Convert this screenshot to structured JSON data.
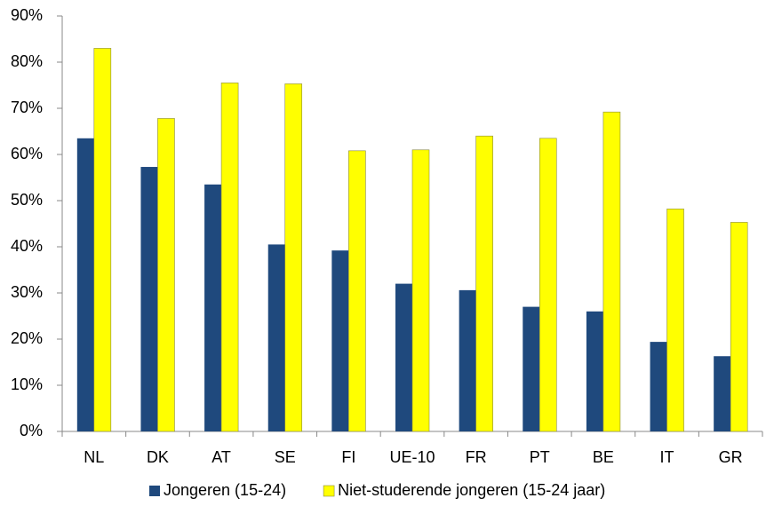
{
  "chart_data": {
    "type": "bar",
    "categories": [
      "NL",
      "DK",
      "AT",
      "SE",
      "FI",
      "UE-10",
      "FR",
      "PT",
      "BE",
      "IT",
      "GR"
    ],
    "series": [
      {
        "name": "Jongeren (15-24)",
        "color": "#1f497d",
        "values": [
          63.5,
          57.3,
          53.5,
          40.5,
          39.2,
          32,
          30.6,
          27,
          26,
          19.4,
          16.3
        ]
      },
      {
        "name": "Niet-studerende jongeren (15-24 jaar)",
        "color": "#ffff00",
        "values": [
          83,
          67.8,
          75.5,
          75.3,
          60.8,
          61,
          64,
          63.5,
          69.2,
          48.2,
          45.3
        ]
      }
    ],
    "ylim": [
      0,
      90
    ],
    "yticks": [
      {
        "value": 0,
        "label": "0%"
      },
      {
        "value": 10,
        "label": "10%"
      },
      {
        "value": 20,
        "label": "20%"
      },
      {
        "value": 30,
        "label": "30%"
      },
      {
        "value": 40,
        "label": "40%"
      },
      {
        "value": 50,
        "label": "50%"
      },
      {
        "value": 60,
        "label": "60%"
      },
      {
        "value": 70,
        "label": "70%"
      },
      {
        "value": 80,
        "label": "80%"
      },
      {
        "value": 90,
        "label": "90%"
      }
    ],
    "legend": "bottom"
  }
}
